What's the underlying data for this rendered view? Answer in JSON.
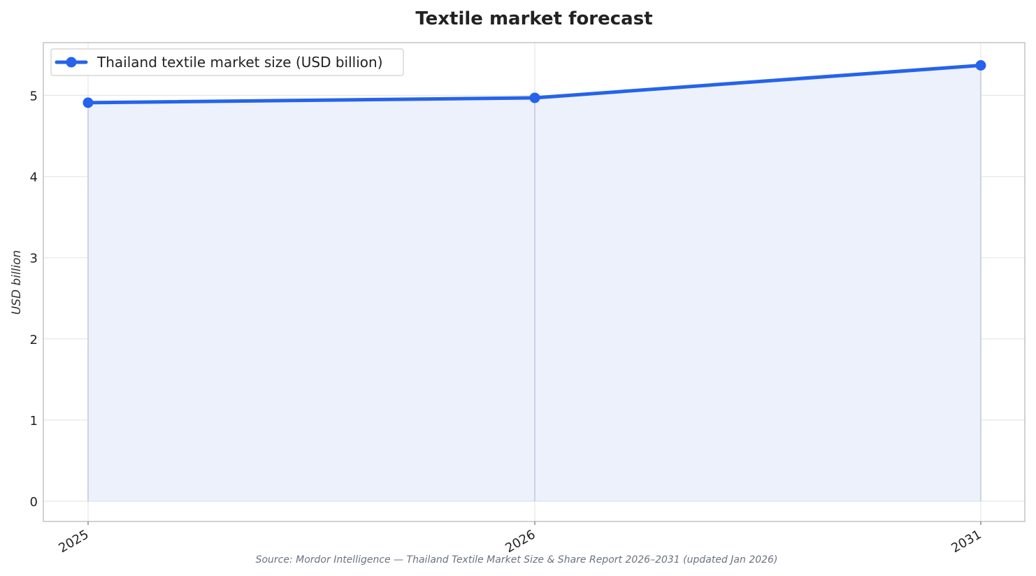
{
  "chart_data": {
    "type": "area",
    "title": "Textile market forecast",
    "xlabel": "",
    "ylabel": "USD billion",
    "x": [
      "2025",
      "2026",
      "2031"
    ],
    "series": [
      {
        "name": "Thailand textile market size (USD billion)",
        "values": [
          4.91,
          4.97,
          5.37
        ]
      }
    ],
    "yticks": [
      "0",
      "1",
      "2",
      "3",
      "4",
      "5"
    ],
    "ylim": [
      -0.25,
      5.65
    ],
    "grid": true,
    "legend_position": "top-left",
    "source": "Source: Mordor Intelligence — Thailand Textile Market Size & Share Report 2026–2031 (updated Jan 2026)",
    "colors": {
      "line": "#2563eb",
      "fill": "#ecf1fc",
      "grid": "#e5e7eb",
      "frame": "#c4c4c4",
      "droplines": "#c2c8d8"
    }
  }
}
